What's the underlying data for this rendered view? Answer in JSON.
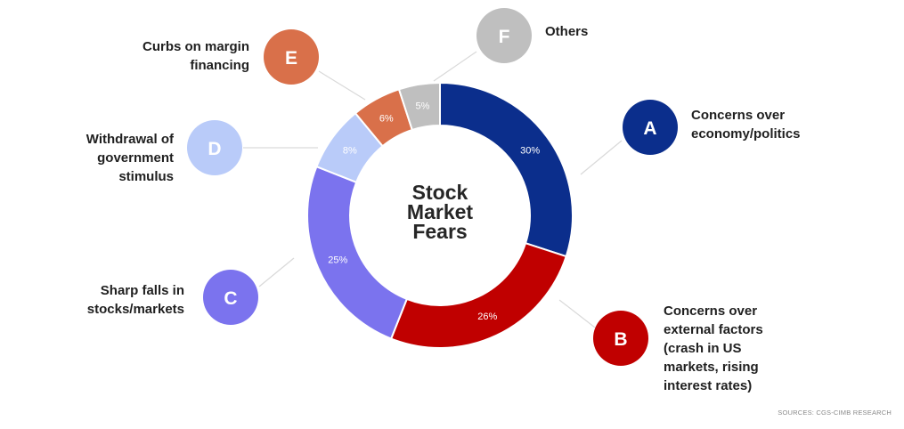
{
  "chart_data": {
    "type": "pie",
    "variant": "donut",
    "center_label": "Stock\nMarket\nFears",
    "slices": [
      {
        "key": "A",
        "label": "Concerns over\neconomy/politics",
        "value": 30,
        "value_label": "30%",
        "color": "#0b2e8c"
      },
      {
        "key": "B",
        "label": "Concerns over\nexternal factors\n(crash in US\nmarkets, rising\ninterest rates)",
        "value": 26,
        "value_label": "26%",
        "color": "#c00000"
      },
      {
        "key": "C",
        "label": "Sharp falls in\nstocks/markets",
        "value": 25,
        "value_label": "25%",
        "color": "#7b73ee"
      },
      {
        "key": "D",
        "label": "Withdrawal of\ngovernment\nstimulus",
        "value": 8,
        "value_label": "8%",
        "color": "#b9cbf9"
      },
      {
        "key": "E",
        "label": "Curbs on margin\nfinancing",
        "value": 6,
        "value_label": "6%",
        "color": "#d9704a"
      },
      {
        "key": "F",
        "label": "Others",
        "value": 5,
        "value_label": "5%",
        "color": "#bfbfbf"
      }
    ]
  },
  "footer": {
    "source": "SOURCES: CGS-CIMB RESEARCH"
  }
}
